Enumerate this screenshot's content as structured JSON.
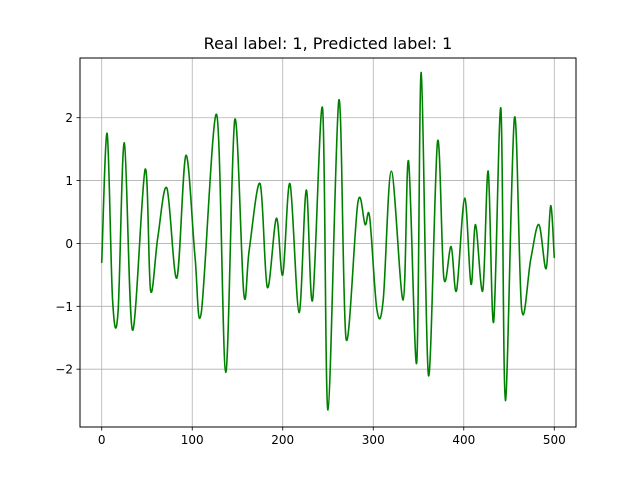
{
  "chart_data": {
    "type": "line",
    "title": "Real label: 1, Predicted label: 1",
    "xlabel": "",
    "ylabel": "",
    "xlim": [
      -24,
      524
    ],
    "ylim": [
      -2.92,
      2.95
    ],
    "grid": true,
    "xticks": [
      0,
      100,
      200,
      300,
      400,
      500
    ],
    "yticks": [
      -2,
      -1,
      0,
      1,
      2
    ],
    "xtick_labels": [
      "0",
      "100",
      "200",
      "300",
      "400",
      "500"
    ],
    "ytick_labels": [
      "−2",
      "−1",
      "0",
      "1",
      "2"
    ],
    "series": [
      {
        "color": "#008000",
        "x": [
          0,
          6,
          12,
          18,
          25,
          34,
          48,
          54,
          62,
          72,
          83,
          93,
          103,
          110,
          127,
          137,
          147,
          157,
          163,
          175,
          183,
          193,
          200,
          208,
          218,
          226,
          233,
          244,
          250,
          262,
          270,
          283,
          291,
          296,
          304,
          311,
          320,
          333,
          339,
          348,
          353,
          361,
          371,
          378,
          386,
          392,
          401,
          408,
          413,
          421,
          427,
          433,
          441,
          446,
          456,
          464,
          474,
          483,
          491,
          496,
          500
        ],
        "y": [
          -0.3,
          1.75,
          -0.9,
          -1.1,
          1.6,
          -1.38,
          1.18,
          -0.75,
          0.1,
          0.88,
          -0.55,
          1.4,
          -0.2,
          -1.1,
          2.05,
          -2.05,
          1.97,
          -0.8,
          -0.1,
          0.95,
          -0.7,
          0.4,
          -0.5,
          0.95,
          -1.1,
          0.85,
          -0.9,
          2.15,
          -2.65,
          2.28,
          -1.52,
          0.65,
          0.3,
          0.42,
          -1.05,
          -0.9,
          1.15,
          -0.9,
          1.31,
          -1.9,
          2.72,
          -2.1,
          1.62,
          -0.55,
          -0.05,
          -0.75,
          0.72,
          -0.65,
          0.3,
          -0.75,
          1.15,
          -1.25,
          2.15,
          -2.5,
          2.0,
          -1.05,
          -0.25,
          0.3,
          -0.4,
          0.6,
          -0.22
        ]
      }
    ]
  }
}
